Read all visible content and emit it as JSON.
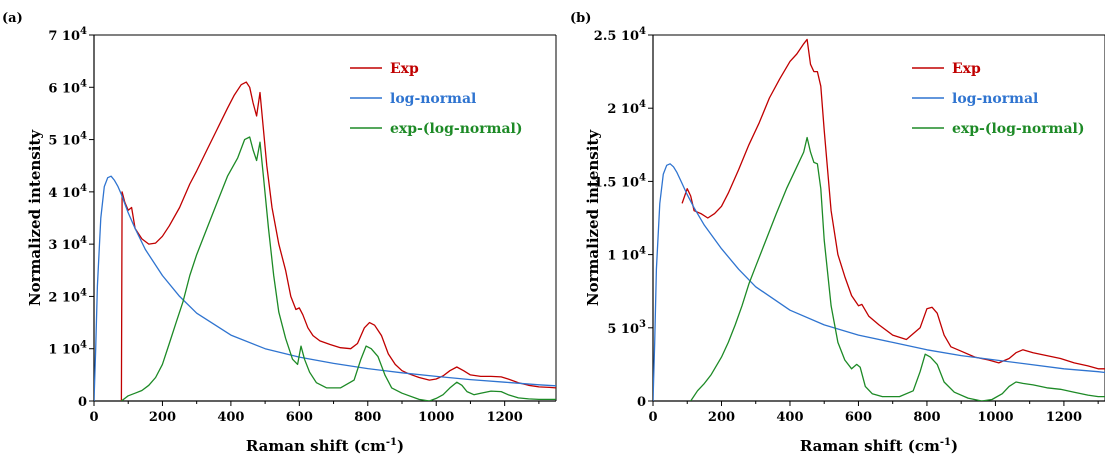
{
  "chart_data": [
    {
      "type": "line",
      "panel_label": "(a)",
      "xlabel": "Raman shift (cm",
      "xlabel_sup": "-1",
      "xlabel_tail": ")",
      "ylabel": "Normalized intensity",
      "xlim": [
        0,
        1350
      ],
      "ylim": [
        0,
        70000
      ],
      "x_ticks": [
        0,
        200,
        400,
        600,
        800,
        1000,
        1200
      ],
      "y_ticks": [
        {
          "value": 0,
          "base": "0",
          "exp": ""
        },
        {
          "value": 10000,
          "base": "1 10",
          "exp": "4"
        },
        {
          "value": 20000,
          "base": "2 10",
          "exp": "4"
        },
        {
          "value": 30000,
          "base": "3 10",
          "exp": "4"
        },
        {
          "value": 40000,
          "base": "4 10",
          "exp": "4"
        },
        {
          "value": 50000,
          "base": "5 10",
          "exp": "4"
        },
        {
          "value": 60000,
          "base": "6 10",
          "exp": "4"
        },
        {
          "value": 70000,
          "base": "7 10",
          "exp": "4"
        }
      ],
      "legend_position": "top-right",
      "series": [
        {
          "name": "Exp",
          "color": "#c00000",
          "x": [
            80,
            82,
            90,
            100,
            110,
            120,
            140,
            160,
            180,
            200,
            220,
            250,
            280,
            300,
            330,
            360,
            390,
            410,
            430,
            445,
            455,
            465,
            475,
            485,
            495,
            505,
            520,
            540,
            560,
            575,
            590,
            600,
            610,
            625,
            640,
            660,
            690,
            720,
            750,
            770,
            790,
            805,
            820,
            840,
            860,
            880,
            900,
            920,
            950,
            980,
            1000,
            1020,
            1040,
            1060,
            1080,
            1100,
            1130,
            1160,
            1190,
            1210,
            1240,
            1270,
            1300,
            1330,
            1350
          ],
          "y": [
            0,
            40000,
            38000,
            36500,
            37000,
            33000,
            31000,
            30000,
            30200,
            31500,
            33500,
            37000,
            41500,
            44000,
            48000,
            52000,
            56000,
            58500,
            60500,
            61000,
            60000,
            57000,
            54500,
            59000,
            52000,
            45000,
            37000,
            30000,
            25000,
            20000,
            17500,
            17800,
            16500,
            14000,
            12500,
            11500,
            10800,
            10200,
            10000,
            11000,
            14000,
            15000,
            14500,
            12500,
            9000,
            7000,
            5800,
            5200,
            4500,
            4000,
            4200,
            4800,
            5800,
            6500,
            5800,
            5000,
            4700,
            4700,
            4600,
            4200,
            3500,
            3000,
            2700,
            2600,
            2500
          ]
        },
        {
          "name": "log-normal",
          "color": "#2f74d0",
          "x": [
            0,
            5,
            10,
            20,
            30,
            40,
            50,
            60,
            70,
            80,
            100,
            120,
            150,
            200,
            250,
            300,
            400,
            500,
            600,
            700,
            800,
            900,
            1000,
            1100,
            1200,
            1300,
            1350
          ],
          "y": [
            0,
            10000,
            22000,
            35000,
            41000,
            42700,
            43000,
            42200,
            41000,
            39500,
            36000,
            33000,
            29000,
            24000,
            20000,
            16800,
            12600,
            10000,
            8400,
            7200,
            6200,
            5400,
            4700,
            4100,
            3600,
            3100,
            2900
          ]
        },
        {
          "name": "exp-(log-normal)",
          "color": "#1d8a26",
          "x": [
            80,
            100,
            120,
            140,
            160,
            180,
            200,
            220,
            240,
            260,
            280,
            300,
            330,
            360,
            390,
            420,
            440,
            455,
            465,
            475,
            485,
            495,
            510,
            525,
            540,
            560,
            580,
            595,
            605,
            615,
            630,
            650,
            680,
            720,
            760,
            780,
            795,
            810,
            830,
            850,
            870,
            900,
            950,
            980,
            1000,
            1020,
            1040,
            1060,
            1075,
            1090,
            1110,
            1130,
            1160,
            1190,
            1210,
            1240,
            1270,
            1300,
            1330,
            1350
          ],
          "y": [
            0,
            1000,
            1500,
            2000,
            3000,
            4500,
            7000,
            11000,
            15000,
            19000,
            24000,
            28000,
            33000,
            38000,
            43000,
            46500,
            50000,
            50500,
            48000,
            46000,
            49500,
            43000,
            33000,
            24000,
            17000,
            12000,
            8000,
            7000,
            10500,
            8000,
            5500,
            3500,
            2500,
            2500,
            4000,
            8000,
            10500,
            10000,
            8500,
            5000,
            2500,
            1500,
            300,
            0,
            500,
            1200,
            2500,
            3600,
            3000,
            1800,
            1200,
            1500,
            1900,
            1800,
            1200,
            600,
            400,
            300,
            300,
            300
          ]
        }
      ]
    },
    {
      "type": "line",
      "panel_label": "(b)",
      "xlabel": "Raman shift (cm",
      "xlabel_sup": "-1",
      "xlabel_tail": ")",
      "ylabel": "Normalized intensity",
      "xlim": [
        0,
        1320
      ],
      "ylim": [
        0,
        25000
      ],
      "x_ticks": [
        0,
        200,
        400,
        600,
        800,
        1000,
        1200
      ],
      "y_ticks": [
        {
          "value": 0,
          "base": "0",
          "exp": ""
        },
        {
          "value": 5000,
          "base": "5 10",
          "exp": "3"
        },
        {
          "value": 10000,
          "base": "1 10",
          "exp": "4"
        },
        {
          "value": 15000,
          "base": "1.5 10",
          "exp": "4"
        },
        {
          "value": 20000,
          "base": "2 10",
          "exp": "4"
        },
        {
          "value": 25000,
          "base": "2.5 10",
          "exp": "4"
        }
      ],
      "legend_position": "top-right",
      "series": [
        {
          "name": "Exp",
          "color": "#c00000",
          "x": [
            85,
            100,
            110,
            120,
            140,
            160,
            180,
            200,
            220,
            250,
            280,
            310,
            340,
            370,
            400,
            420,
            440,
            450,
            460,
            470,
            480,
            490,
            500,
            520,
            540,
            560,
            580,
            600,
            610,
            630,
            660,
            700,
            740,
            780,
            800,
            815,
            830,
            850,
            870,
            900,
            940,
            980,
            1010,
            1040,
            1060,
            1080,
            1110,
            1150,
            1190,
            1230,
            1270,
            1300,
            1320
          ],
          "y": [
            13500,
            14500,
            14000,
            13000,
            12800,
            12500,
            12800,
            13300,
            14200,
            15800,
            17500,
            19000,
            20700,
            22000,
            23200,
            23700,
            24400,
            24700,
            23000,
            22500,
            22500,
            21500,
            18500,
            13000,
            10000,
            8500,
            7200,
            6500,
            6600,
            5800,
            5200,
            4500,
            4200,
            5000,
            6300,
            6400,
            6000,
            4500,
            3700,
            3400,
            3000,
            2800,
            2600,
            2900,
            3300,
            3500,
            3300,
            3100,
            2900,
            2600,
            2400,
            2200,
            2200
          ]
        },
        {
          "name": "log-normal",
          "color": "#2f74d0",
          "x": [
            0,
            5,
            10,
            20,
            30,
            40,
            50,
            60,
            70,
            80,
            100,
            120,
            150,
            200,
            250,
            300,
            400,
            500,
            600,
            700,
            800,
            900,
            1000,
            1100,
            1200,
            1300,
            1320
          ],
          "y": [
            0,
            4000,
            9000,
            13500,
            15500,
            16100,
            16200,
            16000,
            15600,
            15100,
            14100,
            13200,
            12000,
            10400,
            9000,
            7800,
            6200,
            5200,
            4500,
            4000,
            3500,
            3100,
            2800,
            2500,
            2200,
            2000,
            1950
          ]
        },
        {
          "name": "exp-(log-normal)",
          "color": "#1d8a26",
          "x": [
            110,
            130,
            150,
            170,
            200,
            220,
            240,
            260,
            280,
            300,
            330,
            360,
            390,
            420,
            440,
            450,
            460,
            470,
            480,
            490,
            500,
            520,
            540,
            560,
            580,
            595,
            605,
            620,
            640,
            670,
            720,
            760,
            780,
            795,
            810,
            830,
            850,
            880,
            920,
            960,
            990,
            1020,
            1040,
            1060,
            1080,
            1110,
            1150,
            1190,
            1230,
            1270,
            1300,
            1320
          ],
          "y": [
            0,
            700,
            1200,
            1800,
            3000,
            4000,
            5200,
            6500,
            8000,
            9200,
            11000,
            12800,
            14500,
            16000,
            17000,
            18000,
            17000,
            16300,
            16200,
            14500,
            11000,
            6500,
            4000,
            2800,
            2200,
            2500,
            2300,
            1000,
            500,
            300,
            300,
            700,
            2000,
            3200,
            3000,
            2500,
            1300,
            600,
            200,
            0,
            100,
            500,
            1000,
            1300,
            1200,
            1100,
            900,
            800,
            600,
            400,
            300,
            300
          ]
        }
      ]
    }
  ]
}
